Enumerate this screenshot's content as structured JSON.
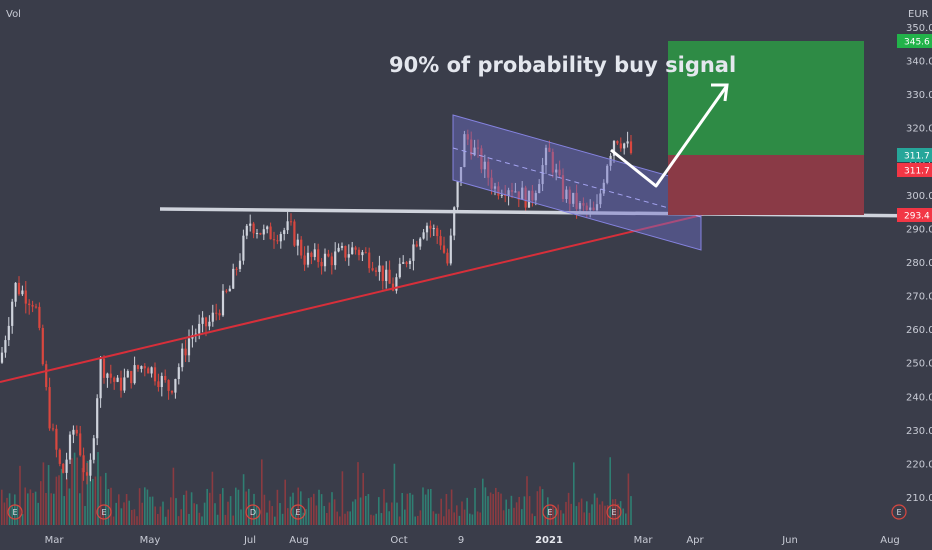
{
  "corner": {
    "left_label": "Vol",
    "currency": "EUR"
  },
  "annotation": "90% of probability buy signal",
  "chart_data": {
    "type": "candlestick",
    "ylim": [
      204,
      353
    ],
    "y_ticks": [
      210,
      220,
      230,
      240,
      250,
      260,
      270,
      280,
      290,
      300,
      310,
      320,
      330,
      340,
      350
    ],
    "x_ticks": [
      "Mar",
      "May",
      "Jul",
      "Aug",
      "Oct",
      "9",
      "2021",
      "Mar",
      "Apr",
      "Jun",
      "Aug"
    ],
    "x_tick_bold": "2021",
    "price_labels": [
      {
        "label": "345.6",
        "value": 345.6,
        "color": "#22b34a"
      },
      {
        "label": "311.7",
        "value": 311.7,
        "color": "#26a69a"
      },
      {
        "label": "311.7",
        "value": 311.7,
        "color": "#f23645"
      },
      {
        "label": "293.4",
        "value": 293.4,
        "color": "#f23645"
      }
    ],
    "levels": {
      "take_profit": 345.6,
      "entry": 311.7,
      "stop_loss": 293.4,
      "resistance": 294.5
    },
    "events": [
      "E",
      "E",
      "D",
      "E",
      "E",
      "E",
      "E"
    ],
    "colors": {
      "up": "#cfd3dc",
      "down": "#d9473f",
      "resistance_line": "#cfd3dc",
      "trend_line": "#d72f3a",
      "channel": "#6f6ec9",
      "profit": "#2e8b45",
      "loss": "#8a3a46",
      "arrow": "#ffffff"
    }
  }
}
